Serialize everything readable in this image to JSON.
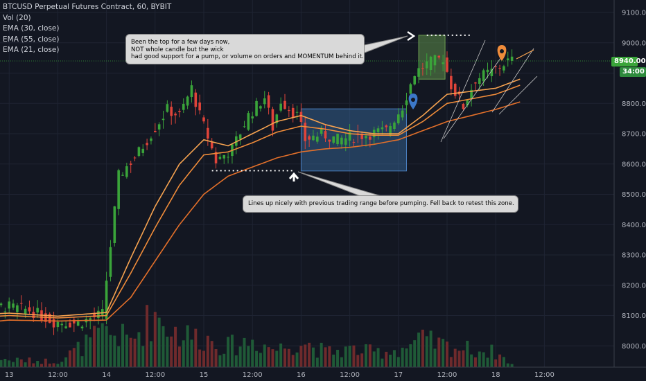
{
  "legend": {
    "title": "BTCUSD Perpetual Futures Contract, 60, BYBIT",
    "vol": "Vol (20)",
    "ema30": "EMA (30, close)",
    "ema55": "EMA (55, close)",
    "ema21": "EMA (21, close)"
  },
  "annotations": {
    "note1_lines": [
      "Been the top for a few days now,",
      "NOT whole candle but the wick",
      "had good support for a pump, or volume on orders and MOMENTUM behind it."
    ],
    "note2": "Lines up nicely with previous trading range before pumping. Fell back to retest this zone."
  },
  "price_tags": {
    "last_price": "8940.00",
    "countdown": "34:00"
  },
  "colors": {
    "background": "#131722",
    "up": "#26a69a",
    "down": "#ef5350",
    "up_candle": "#3aa43a",
    "down_candle": "#e0443a",
    "ema21": "#f7a350",
    "ema30": "#f08c3a",
    "ema55": "#e4702a",
    "range_box": "#3a6ea5",
    "top_box": "#5f8f4a",
    "last_price_line": "#3aa43a",
    "pin_blue": "#3c78c8",
    "pin_orange": "#f08c3a"
  },
  "chart_data": {
    "type": "candlestick",
    "symbol": "BTCUSD Perpetual Futures Contract",
    "interval": "60",
    "exchange": "BYBIT",
    "y_axis": {
      "ticks": [
        8000,
        8100,
        8200,
        8300,
        8400,
        8500,
        8600,
        8700,
        8800,
        8900,
        9000,
        9100
      ],
      "tick_labels": [
        "8000.00",
        "8100.00",
        "8200.00",
        "8300.00",
        "8400.00",
        "8500.00",
        "8600.00",
        "8700.00",
        "8800.00",
        "8900.00",
        "9000.00",
        "9100.00"
      ],
      "range": [
        7955,
        9150
      ]
    },
    "x_axis": {
      "tick_labels": [
        "12:00",
        "13",
        "12:00",
        "14",
        "12:00",
        "15",
        "12:00",
        "16",
        "12:00",
        "17",
        "12:00",
        "18",
        "12:00"
      ],
      "tick_hours": [
        -12,
        0,
        12,
        24,
        36,
        48,
        60,
        72,
        84,
        96,
        108,
        120,
        132
      ],
      "range_hours": [
        -12,
        142
      ]
    },
    "price_path": [
      [
        -12,
        8110
      ],
      [
        -6,
        8125
      ],
      [
        0,
        8130
      ],
      [
        6,
        8118
      ],
      [
        12,
        8080
      ],
      [
        18,
        8075
      ],
      [
        24,
        8105
      ],
      [
        26,
        8330
      ],
      [
        28,
        8560
      ],
      [
        33,
        8640
      ],
      [
        36,
        8700
      ],
      [
        40,
        8780
      ],
      [
        43,
        8760
      ],
      [
        46,
        8850
      ],
      [
        48,
        8760
      ],
      [
        50,
        8690
      ],
      [
        52,
        8610
      ],
      [
        56,
        8650
      ],
      [
        60,
        8760
      ],
      [
        64,
        8820
      ],
      [
        66,
        8720
      ],
      [
        68,
        8810
      ],
      [
        72,
        8760
      ],
      [
        74,
        8680
      ],
      [
        78,
        8700
      ],
      [
        82,
        8680
      ],
      [
        86,
        8690
      ],
      [
        90,
        8700
      ],
      [
        94,
        8710
      ],
      [
        98,
        8790
      ],
      [
        101,
        8900
      ],
      [
        104,
        8930
      ],
      [
        108,
        8950
      ],
      [
        110,
        8860
      ],
      [
        113,
        8790
      ],
      [
        116,
        8880
      ],
      [
        120,
        8905
      ],
      [
        124,
        8940
      ]
    ],
    "ema21": [
      [
        -12,
        8100
      ],
      [
        0,
        8108
      ],
      [
        12,
        8098
      ],
      [
        24,
        8110
      ],
      [
        30,
        8290
      ],
      [
        36,
        8460
      ],
      [
        42,
        8600
      ],
      [
        48,
        8680
      ],
      [
        54,
        8660
      ],
      [
        60,
        8700
      ],
      [
        66,
        8740
      ],
      [
        72,
        8760
      ],
      [
        78,
        8730
      ],
      [
        84,
        8710
      ],
      [
        90,
        8700
      ],
      [
        96,
        8700
      ],
      [
        102,
        8760
      ],
      [
        108,
        8830
      ],
      [
        114,
        8840
      ],
      [
        120,
        8850
      ],
      [
        126,
        8880
      ]
    ],
    "ema30": [
      [
        -12,
        8090
      ],
      [
        0,
        8100
      ],
      [
        12,
        8092
      ],
      [
        24,
        8100
      ],
      [
        30,
        8240
      ],
      [
        36,
        8390
      ],
      [
        42,
        8530
      ],
      [
        48,
        8630
      ],
      [
        54,
        8640
      ],
      [
        60,
        8670
      ],
      [
        66,
        8705
      ],
      [
        72,
        8725
      ],
      [
        78,
        8715
      ],
      [
        84,
        8700
      ],
      [
        90,
        8695
      ],
      [
        96,
        8695
      ],
      [
        102,
        8740
      ],
      [
        108,
        8800
      ],
      [
        114,
        8815
      ],
      [
        120,
        8830
      ],
      [
        126,
        8860
      ]
    ],
    "ema55": [
      [
        -12,
        8070
      ],
      [
        0,
        8085
      ],
      [
        12,
        8082
      ],
      [
        24,
        8085
      ],
      [
        30,
        8160
      ],
      [
        36,
        8280
      ],
      [
        42,
        8400
      ],
      [
        48,
        8500
      ],
      [
        54,
        8560
      ],
      [
        60,
        8590
      ],
      [
        66,
        8620
      ],
      [
        72,
        8640
      ],
      [
        78,
        8650
      ],
      [
        84,
        8655
      ],
      [
        90,
        8665
      ],
      [
        96,
        8680
      ],
      [
        102,
        8710
      ],
      [
        108,
        8740
      ],
      [
        114,
        8760
      ],
      [
        120,
        8780
      ],
      [
        126,
        8805
      ]
    ],
    "volume_profile": [
      [
        -12,
        0.15
      ],
      [
        0,
        0.12
      ],
      [
        12,
        0.1
      ],
      [
        24,
        0.6
      ],
      [
        30,
        0.45
      ],
      [
        36,
        0.9
      ],
      [
        42,
        0.55
      ],
      [
        48,
        0.5
      ],
      [
        54,
        0.35
      ],
      [
        60,
        0.45
      ],
      [
        66,
        0.3
      ],
      [
        72,
        0.45
      ],
      [
        78,
        0.25
      ],
      [
        84,
        0.3
      ],
      [
        90,
        0.25
      ],
      [
        96,
        0.3
      ],
      [
        102,
        0.45
      ],
      [
        108,
        0.35
      ],
      [
        114,
        0.3
      ],
      [
        120,
        0.25
      ],
      [
        124,
        0.05
      ]
    ],
    "zones": {
      "range_box": {
        "x0": 72,
        "x1": 98,
        "y0": 8577,
        "y1": 8782
      },
      "top_box": {
        "x0": 101,
        "x1": 107.5,
        "y0": 8880,
        "y1": 9025
      },
      "top_line": {
        "x0": 103,
        "x1": 114,
        "y": 9025
      },
      "support_line": {
        "x0": 50,
        "x1": 70,
        "y": 8578
      },
      "last_price": 8940
    }
  }
}
